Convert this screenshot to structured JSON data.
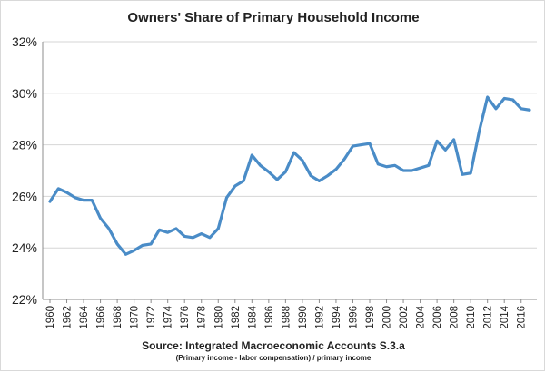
{
  "chart_data": {
    "type": "line",
    "title": "Owners' Share of Primary Household Income",
    "source": "Source: Integrated Macroeconomic Accounts S.3.a",
    "note": "(Primary income - labor compensation) / primary income",
    "xlabel": "",
    "ylabel": "",
    "ylim": [
      22,
      32
    ],
    "yticks": [
      22,
      24,
      26,
      28,
      30,
      32
    ],
    "ytick_labels": [
      "22%",
      "24%",
      "26%",
      "28%",
      "30%",
      "32%"
    ],
    "xlim": [
      1960,
      2017
    ],
    "xtick_labels": [
      "1960",
      "1962",
      "1964",
      "1966",
      "1968",
      "1970",
      "1972",
      "1974",
      "1976",
      "1978",
      "1980",
      "1982",
      "1984",
      "1986",
      "1988",
      "1990",
      "1992",
      "1994",
      "1996",
      "1998",
      "2000",
      "2002",
      "2004",
      "2006",
      "2008",
      "2010",
      "2012",
      "2014",
      "2016"
    ],
    "grid": true,
    "line_color": "#4a8cc7",
    "series": [
      {
        "x": [
          1960,
          1961,
          1962,
          1963,
          1964,
          1965,
          1966,
          1967,
          1968,
          1969,
          1970,
          1971,
          1972,
          1973,
          1974,
          1975,
          1976,
          1977,
          1978,
          1979,
          1980,
          1981,
          1982,
          1983,
          1984,
          1985,
          1986,
          1987,
          1988,
          1989,
          1990,
          1991,
          1992,
          1993,
          1994,
          1995,
          1996,
          1997,
          1998,
          1999,
          2000,
          2001,
          2002,
          2003,
          2004,
          2005,
          2006,
          2007,
          2008,
          2009,
          2010,
          2011,
          2012,
          2013,
          2014,
          2015,
          2016,
          2017
        ],
        "values": [
          25.8,
          26.3,
          26.15,
          25.95,
          25.85,
          25.85,
          25.15,
          24.75,
          24.15,
          23.75,
          23.9,
          24.1,
          24.15,
          24.7,
          24.6,
          24.75,
          24.45,
          24.4,
          24.55,
          24.4,
          24.75,
          25.95,
          26.4,
          26.6,
          27.6,
          27.2,
          26.95,
          26.65,
          26.95,
          27.7,
          27.4,
          26.8,
          26.6,
          26.8,
          27.05,
          27.45,
          27.95,
          28.0,
          28.05,
          27.25,
          27.15,
          27.2,
          27.0,
          27.0,
          27.1,
          27.2,
          28.15,
          27.8,
          28.2,
          26.85,
          26.9,
          28.5,
          29.85,
          29.4,
          29.8,
          29.75,
          29.4,
          29.35
        ]
      }
    ]
  }
}
